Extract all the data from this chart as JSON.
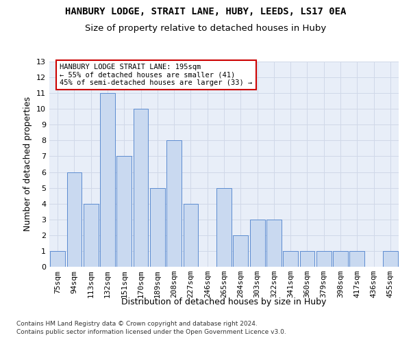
{
  "title1": "HANBURY LODGE, STRAIT LANE, HUBY, LEEDS, LS17 0EA",
  "title2": "Size of property relative to detached houses in Huby",
  "xlabel": "Distribution of detached houses by size in Huby",
  "ylabel": "Number of detached properties",
  "categories": [
    "75sqm",
    "94sqm",
    "113sqm",
    "132sqm",
    "151sqm",
    "170sqm",
    "189sqm",
    "208sqm",
    "227sqm",
    "246sqm",
    "265sqm",
    "284sqm",
    "303sqm",
    "322sqm",
    "341sqm",
    "360sqm",
    "379sqm",
    "398sqm",
    "417sqm",
    "436sqm",
    "455sqm"
  ],
  "values": [
    1,
    6,
    4,
    11,
    7,
    10,
    5,
    8,
    4,
    0,
    5,
    2,
    3,
    3,
    1,
    1,
    1,
    1,
    1,
    0,
    1
  ],
  "bar_color": "#c9d9f0",
  "bar_edge_color": "#5b8bd0",
  "annotation_box_text": "HANBURY LODGE STRAIT LANE: 195sqm\n← 55% of detached houses are smaller (41)\n45% of semi-detached houses are larger (33) →",
  "annotation_box_color": "#ffffff",
  "annotation_box_edge_color": "#cc0000",
  "ylim": [
    0,
    13
  ],
  "yticks": [
    0,
    1,
    2,
    3,
    4,
    5,
    6,
    7,
    8,
    9,
    10,
    11,
    12,
    13
  ],
  "grid_color": "#d0d8e8",
  "bg_color": "#e8eef8",
  "footer1": "Contains HM Land Registry data © Crown copyright and database right 2024.",
  "footer2": "Contains public sector information licensed under the Open Government Licence v3.0.",
  "title1_fontsize": 10,
  "title2_fontsize": 9.5,
  "xlabel_fontsize": 9,
  "ylabel_fontsize": 9,
  "tick_fontsize": 8,
  "annotation_fontsize": 7.5,
  "footer_fontsize": 6.5
}
